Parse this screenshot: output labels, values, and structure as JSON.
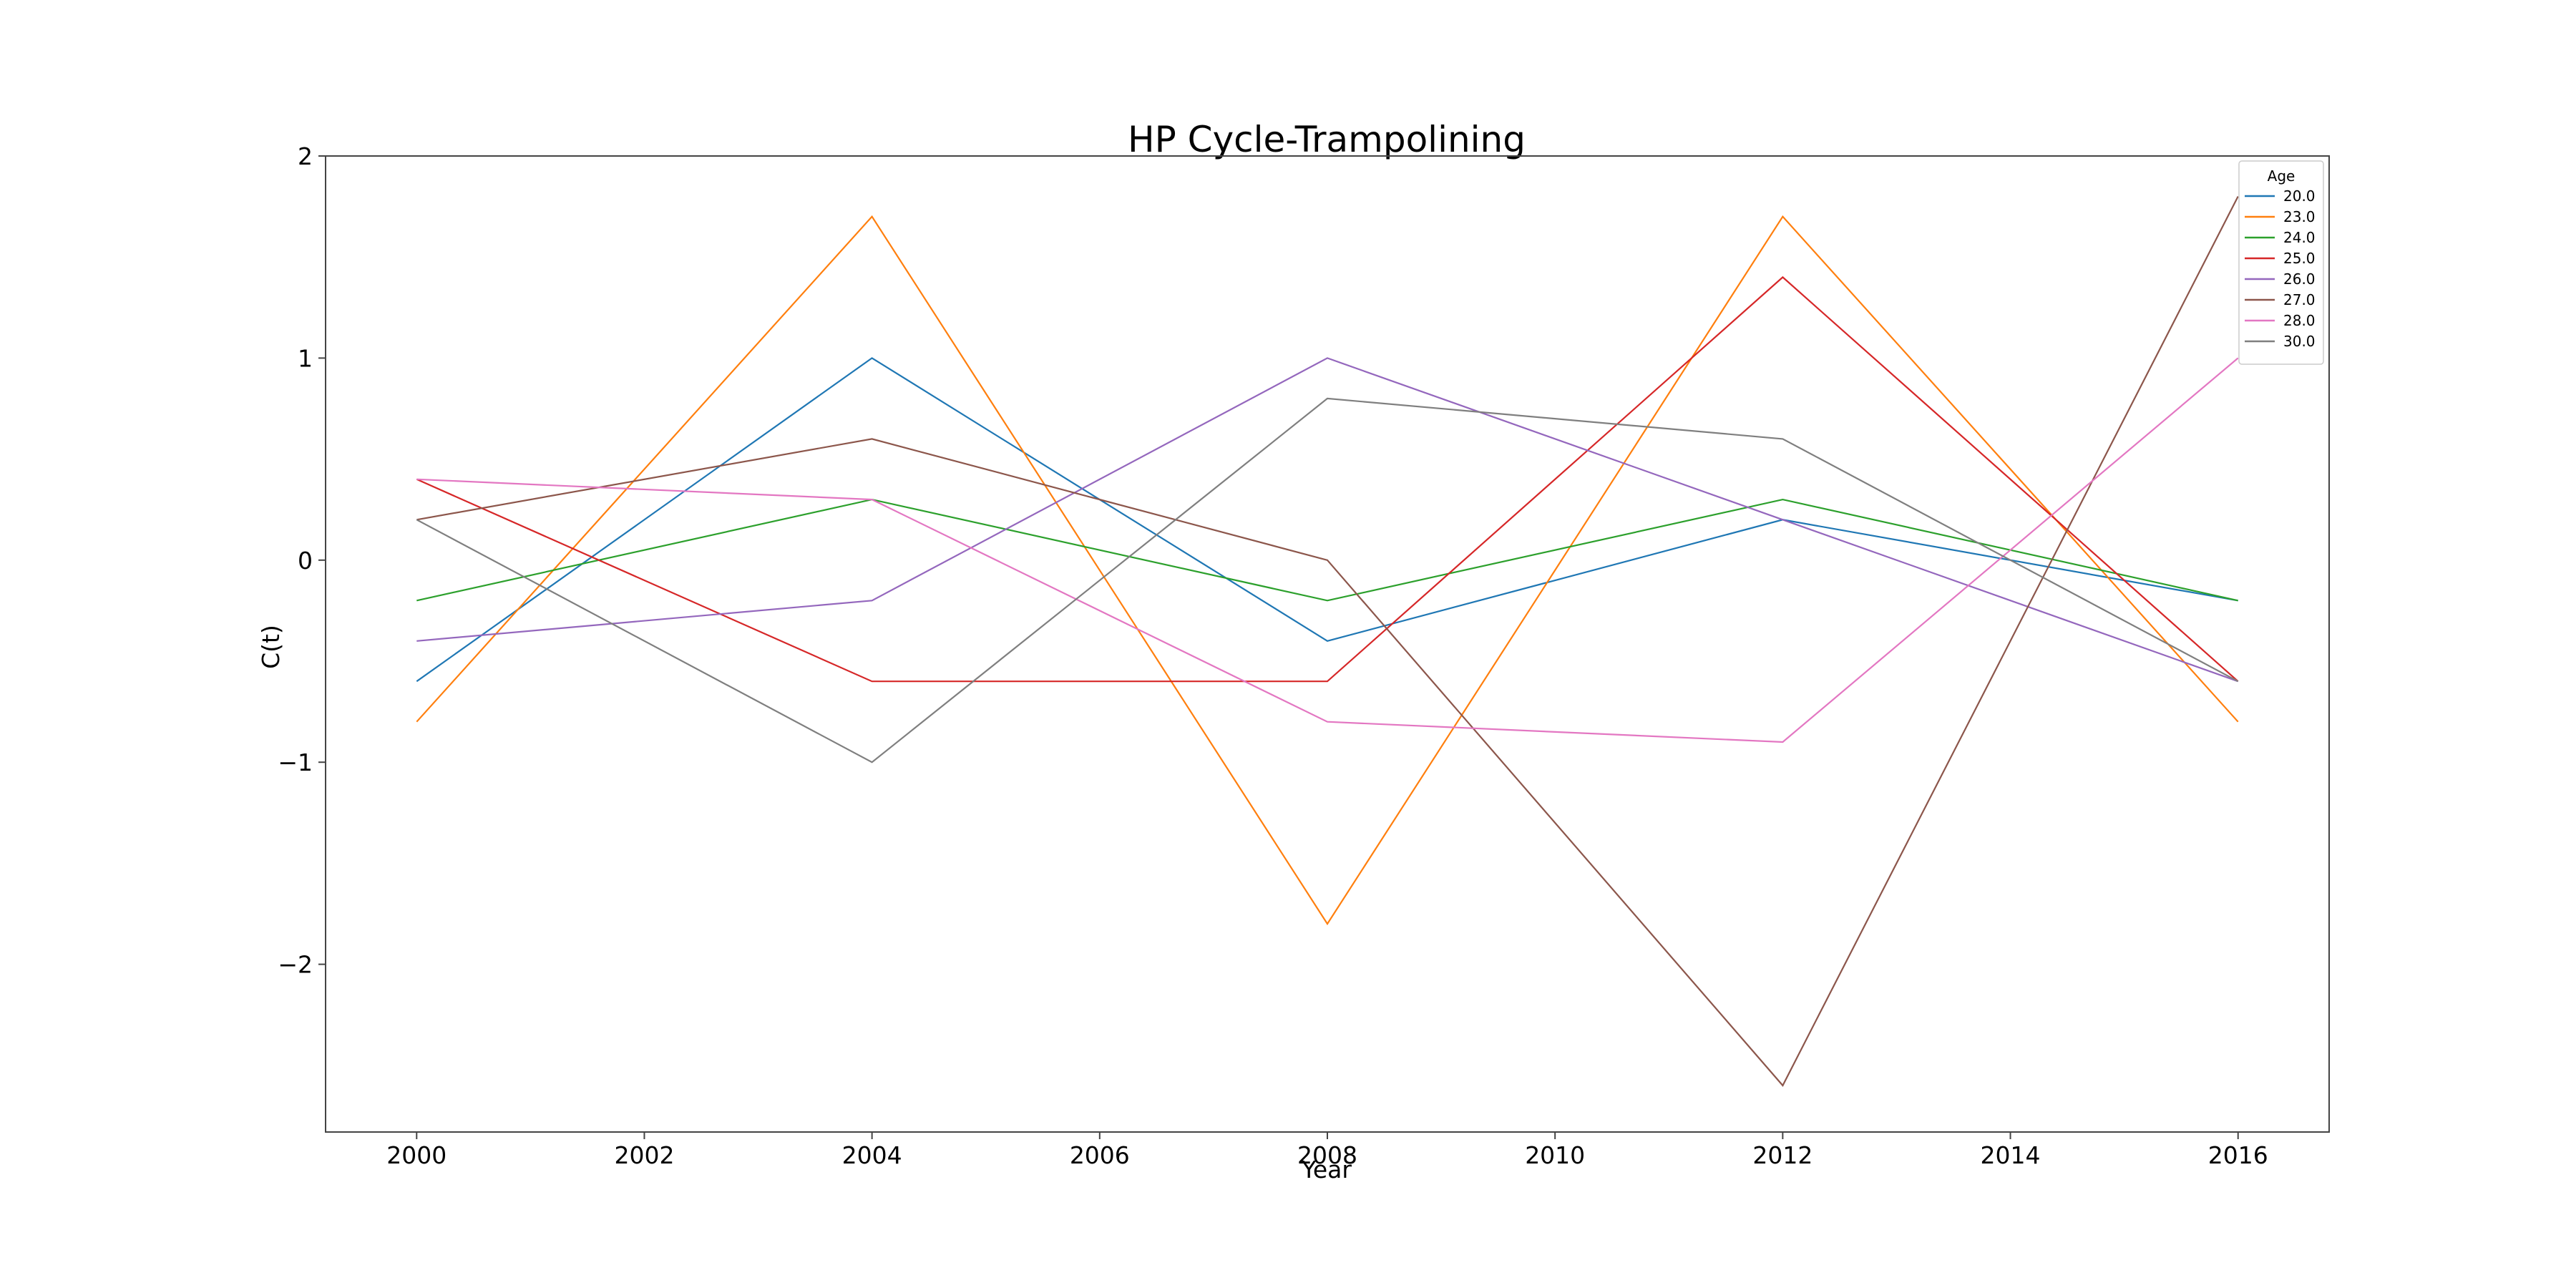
{
  "chart_data": {
    "type": "line",
    "title": "HP Cycle-Trampolining",
    "xlabel": "Year",
    "ylabel": "C(t)",
    "xlim": [
      1999.2,
      2016.8
    ],
    "ylim": [
      -2.83,
      2.0
    ],
    "x_ticks": [
      2000,
      2002,
      2004,
      2006,
      2008,
      2010,
      2012,
      2014,
      2016
    ],
    "x_tick_labels": [
      "2000",
      "2002",
      "2004",
      "2006",
      "2008",
      "2010",
      "2012",
      "2014",
      "2016"
    ],
    "y_ticks": [
      2,
      1,
      0,
      -1,
      -2
    ],
    "y_tick_labels": [
      "2",
      "1",
      "0",
      "−1",
      "−2"
    ],
    "grid": false,
    "legend": {
      "title": "Age",
      "placement": "top-right"
    },
    "x": [
      2000,
      2004,
      2008,
      2012,
      2016
    ],
    "series": [
      {
        "name": "20.0",
        "color": "#1f77b4",
        "values": [
          -0.6,
          1.0,
          -0.4,
          0.2,
          -0.2
        ]
      },
      {
        "name": "23.0",
        "color": "#ff7f0e",
        "values": [
          -0.8,
          1.7,
          -1.8,
          1.7,
          -0.8
        ]
      },
      {
        "name": "24.0",
        "color": "#2ca02c",
        "values": [
          -0.2,
          0.3,
          -0.2,
          0.3,
          -0.2
        ]
      },
      {
        "name": "25.0",
        "color": "#d62728",
        "values": [
          0.4,
          -0.6,
          -0.6,
          1.4,
          -0.6
        ]
      },
      {
        "name": "26.0",
        "color": "#9467bd",
        "values": [
          -0.4,
          -0.2,
          1.0,
          0.2,
          -0.6
        ]
      },
      {
        "name": "27.0",
        "color": "#8c564b",
        "values": [
          0.2,
          0.6,
          0.0,
          -2.6,
          1.8
        ]
      },
      {
        "name": "28.0",
        "color": "#e377c2",
        "values": [
          0.4,
          0.3,
          -0.8,
          -0.9,
          1.0
        ]
      },
      {
        "name": "30.0",
        "color": "#7f7f7f",
        "values": [
          0.2,
          -1.0,
          0.8,
          0.6,
          -0.6
        ]
      }
    ]
  }
}
